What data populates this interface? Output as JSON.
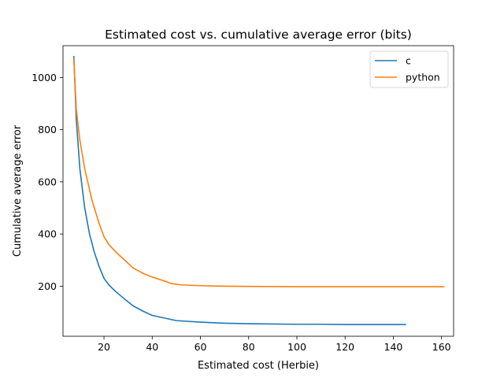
{
  "chart_data": {
    "type": "line",
    "title": "Estimated cost vs. cumulative average error (bits)",
    "xlabel": "Estimated cost (Herbie)",
    "ylabel": "Cumulative average error",
    "xlim": [
      3,
      165
    ],
    "ylim": [
      8,
      1122
    ],
    "xticks": [
      20,
      40,
      60,
      80,
      100,
      120,
      140,
      160
    ],
    "yticks": [
      200,
      400,
      600,
      800,
      1000
    ],
    "grid": false,
    "legend_position": "top-right",
    "series": [
      {
        "name": "c",
        "color": "#1f77b4",
        "x": [
          7.5,
          8.5,
          10,
          12,
          14,
          16,
          18,
          20,
          22,
          25,
          28,
          32,
          36,
          40,
          50,
          60,
          70,
          80,
          90,
          100,
          110,
          120,
          130,
          145
        ],
        "y": [
          1080,
          840,
          650,
          500,
          400,
          330,
          275,
          230,
          205,
          178,
          155,
          125,
          105,
          88,
          68,
          62,
          58,
          56,
          55,
          54,
          54,
          53,
          53,
          53
        ]
      },
      {
        "name": "python",
        "color": "#ff7f0e",
        "x": [
          7.5,
          8.5,
          10,
          12,
          15,
          18,
          20,
          22,
          25,
          28,
          32,
          36,
          40,
          45,
          48,
          52,
          60,
          70,
          80,
          100,
          120,
          140,
          161
        ],
        "y": [
          1070,
          880,
          760,
          650,
          530,
          440,
          390,
          360,
          330,
          305,
          270,
          250,
          235,
          220,
          210,
          205,
          202,
          200,
          199,
          198,
          198,
          198,
          198
        ]
      }
    ]
  }
}
